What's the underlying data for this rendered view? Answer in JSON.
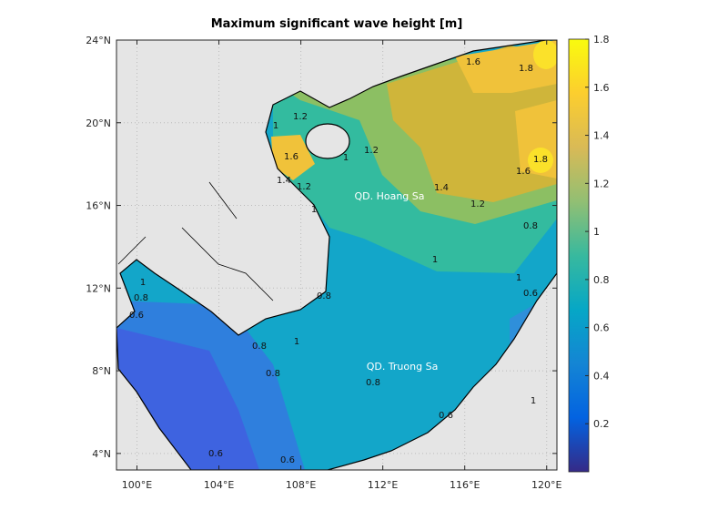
{
  "map": {
    "title": "Maximum significant wave height [m]",
    "xlim": [
      99,
      120.5
    ],
    "ylim": [
      3.2,
      24
    ],
    "xticks": [
      {
        "value": 100,
        "label": "100°E"
      },
      {
        "value": 104,
        "label": "104°E"
      },
      {
        "value": 108,
        "label": "108°E"
      },
      {
        "value": 112,
        "label": "112°E"
      },
      {
        "value": 116,
        "label": "116°E"
      },
      {
        "value": 120,
        "label": "120°E"
      }
    ],
    "yticks": [
      {
        "value": 4,
        "label": "4°N"
      },
      {
        "value": 8,
        "label": "8°N"
      },
      {
        "value": 12,
        "label": "12°N"
      },
      {
        "value": 16,
        "label": "16°N"
      },
      {
        "value": 20,
        "label": "20°N"
      },
      {
        "value": 24,
        "label": "24°N"
      }
    ],
    "grid": true,
    "colorbar": {
      "clim": [
        0,
        1.8
      ],
      "ticks": [
        0.2,
        0.4,
        0.6,
        0.8,
        1,
        1.2,
        1.4,
        1.6,
        1.8
      ],
      "colormap": [
        "#352a87",
        "#0363e1",
        "#1485d4",
        "#06a7c6",
        "#38b99e",
        "#92bf73",
        "#d9ba56",
        "#fcce2e",
        "#f9fb0e"
      ]
    },
    "place_labels": [
      "QD. Hoang Sa",
      "QD. Truong Sa"
    ],
    "contour_labels": [
      1.6,
      1.6,
      1.8,
      1.8,
      1.6,
      1.4,
      1.2,
      1.2,
      1.2,
      1,
      1,
      1,
      1,
      0.8,
      1,
      0.8,
      0.6,
      1.2,
      1,
      0.8,
      0.8,
      0.8,
      0.6,
      0.6,
      0.6,
      1,
      0.6,
      0.8,
      1.4,
      1
    ]
  }
}
